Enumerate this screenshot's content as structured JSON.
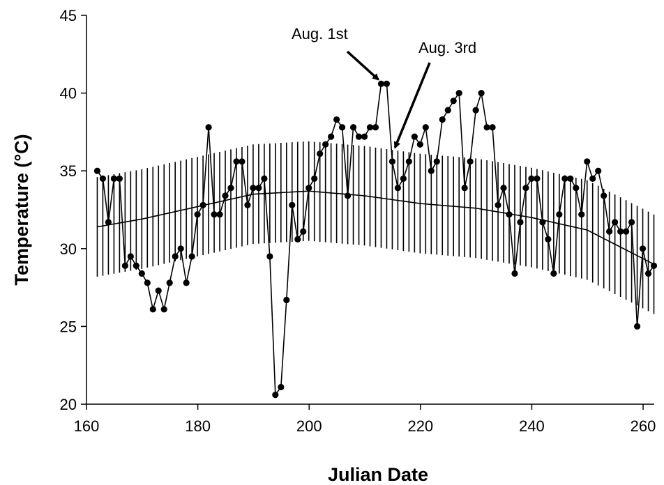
{
  "chart_data": {
    "type": "line",
    "xlabel": "Julian Date",
    "ylabel": "Temperature (°C)",
    "xlim": [
      160,
      262
    ],
    "ylim": [
      20,
      45
    ],
    "xticks": [
      160,
      180,
      200,
      220,
      240,
      260
    ],
    "yticks": [
      20,
      25,
      30,
      35,
      40,
      45
    ],
    "grid": false,
    "legend": "none",
    "series": [
      {
        "kind": "observed",
        "marker": "circle",
        "color": "#000000",
        "x": [
          162,
          163,
          164,
          165,
          166,
          167,
          168,
          169,
          170,
          171,
          172,
          173,
          174,
          175,
          176,
          177,
          178,
          179,
          180,
          181,
          182,
          183,
          184,
          185,
          186,
          187,
          188,
          189,
          190,
          191,
          192,
          193,
          194,
          195,
          196,
          197,
          198,
          199,
          200,
          201,
          202,
          203,
          204,
          205,
          206,
          207,
          208,
          209,
          210,
          211,
          212,
          213,
          214,
          215,
          216,
          217,
          218,
          219,
          220,
          221,
          222,
          223,
          224,
          225,
          226,
          227,
          228,
          229,
          230,
          231,
          232,
          233,
          234,
          235,
          236,
          237,
          238,
          239,
          240,
          241,
          242,
          243,
          244,
          245,
          246,
          247,
          248,
          249,
          250,
          251,
          252,
          253,
          254,
          255,
          256,
          257,
          258,
          259,
          260,
          261,
          262
        ],
        "y": [
          35.0,
          34.5,
          31.7,
          34.5,
          34.5,
          28.9,
          29.5,
          28.9,
          28.4,
          27.8,
          26.1,
          27.3,
          26.1,
          27.8,
          29.5,
          30.0,
          27.8,
          29.5,
          32.2,
          32.8,
          37.8,
          32.2,
          32.2,
          33.4,
          33.9,
          35.6,
          35.6,
          32.8,
          33.9,
          33.9,
          34.5,
          29.5,
          20.6,
          21.1,
          26.7,
          32.8,
          30.6,
          31.1,
          33.9,
          34.5,
          36.1,
          36.7,
          37.2,
          38.3,
          37.8,
          33.4,
          37.8,
          37.2,
          37.2,
          37.8,
          37.8,
          40.6,
          40.6,
          35.6,
          33.9,
          34.5,
          35.6,
          37.2,
          36.7,
          37.8,
          35.0,
          35.6,
          38.3,
          38.9,
          39.5,
          40.0,
          33.9,
          35.6,
          38.9,
          40.0,
          37.8,
          37.8,
          32.8,
          33.9,
          32.2,
          28.4,
          31.7,
          33.9,
          34.5,
          34.5,
          31.7,
          30.6,
          28.4,
          32.2,
          34.5,
          34.5,
          33.9,
          32.2,
          35.6,
          34.5,
          35.0,
          33.4,
          31.1,
          31.7,
          31.1,
          31.1,
          31.7,
          25.0,
          30.0,
          28.4,
          28.9
        ]
      },
      {
        "kind": "mean",
        "marker": "none",
        "color": "#000000",
        "x": [
          162,
          170,
          180,
          190,
          200,
          210,
          220,
          230,
          240,
          250,
          262
        ],
        "y": [
          31.4,
          31.9,
          32.7,
          33.5,
          33.7,
          33.4,
          32.9,
          32.6,
          32.0,
          31.2,
          29.0
        ]
      },
      {
        "kind": "range",
        "color": "#000000",
        "x": [
          162,
          163,
          164,
          165,
          166,
          167,
          168,
          169,
          170,
          171,
          172,
          173,
          174,
          175,
          176,
          177,
          178,
          179,
          180,
          181,
          182,
          183,
          184,
          185,
          186,
          187,
          188,
          189,
          190,
          191,
          192,
          193,
          194,
          195,
          196,
          197,
          198,
          199,
          200,
          201,
          202,
          203,
          204,
          205,
          206,
          207,
          208,
          209,
          210,
          211,
          212,
          213,
          214,
          215,
          216,
          217,
          218,
          219,
          220,
          221,
          222,
          223,
          224,
          225,
          226,
          227,
          228,
          229,
          230,
          231,
          232,
          233,
          234,
          235,
          236,
          237,
          238,
          239,
          240,
          241,
          242,
          243,
          244,
          245,
          246,
          247,
          248,
          249,
          250,
          251,
          252,
          253,
          254,
          255,
          256,
          257,
          258,
          259,
          260,
          261,
          262
        ],
        "halfwidth": 3.2
      }
    ],
    "annotations": [
      {
        "text": "Aug. 1st",
        "x": 213,
        "y": 40.6
      },
      {
        "text": "Aug. 3rd",
        "x": 215.5,
        "y": 36.5
      }
    ]
  }
}
